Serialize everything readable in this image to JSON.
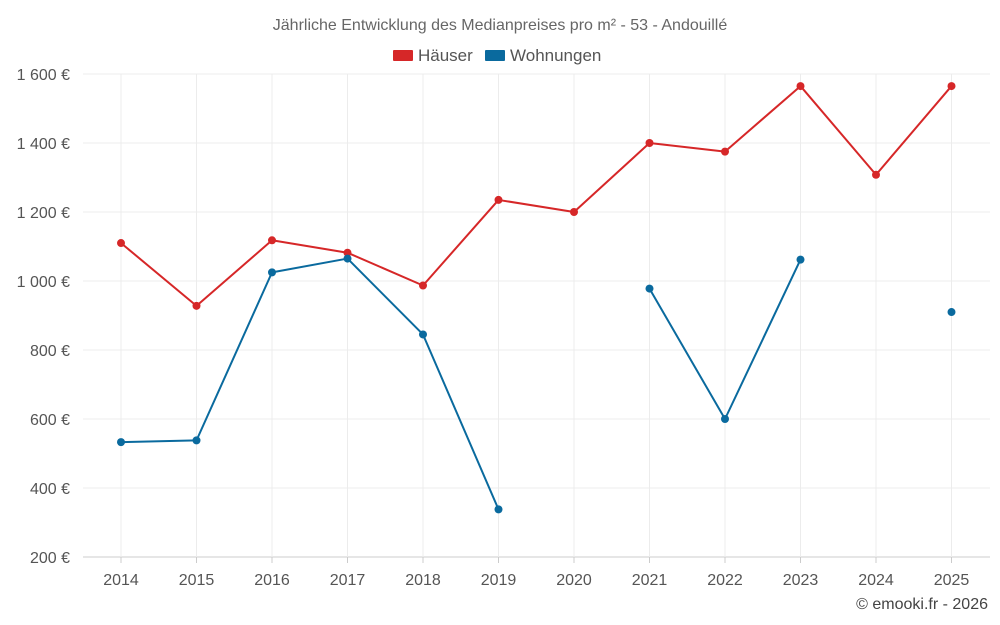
{
  "chart_data": {
    "type": "line",
    "title": "Jährliche Entwicklung des Medianpreises pro m² - 53 - Andouillé",
    "categories": [
      "2014",
      "2015",
      "2016",
      "2017",
      "2018",
      "2019",
      "2020",
      "2021",
      "2022",
      "2023",
      "2024",
      "2025"
    ],
    "ylim": [
      200,
      1600
    ],
    "yticks": [
      200,
      400,
      600,
      800,
      1000,
      1200,
      1400,
      1600
    ],
    "ytick_labels": [
      "200 €",
      "400 €",
      "600 €",
      "800 €",
      "1 000 €",
      "1 200 €",
      "1 400 €",
      "1 600 €"
    ],
    "grid": true,
    "legend_position": "top-center",
    "series": [
      {
        "name": "Häuser",
        "color": "#d62728",
        "values": [
          1110,
          928,
          1118,
          1082,
          987,
          1235,
          1200,
          1400,
          1375,
          1565,
          1308,
          1565
        ]
      },
      {
        "name": "Wohnungen",
        "color": "#0a6a9e",
        "values": [
          533,
          538,
          1025,
          1065,
          845,
          338,
          null,
          978,
          600,
          1062,
          null,
          910
        ]
      }
    ],
    "credit": "© emooki.fr - 2026"
  }
}
